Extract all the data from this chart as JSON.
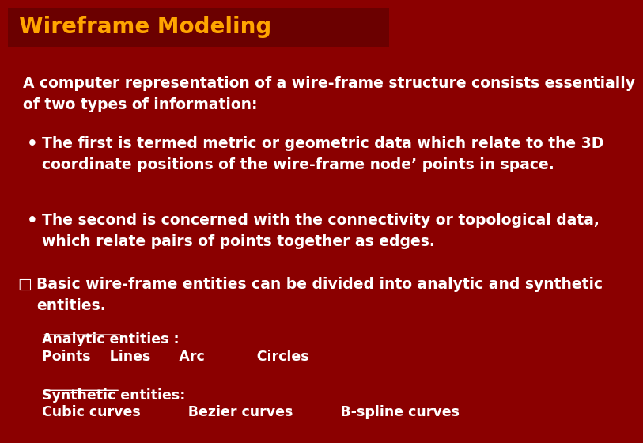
{
  "background_color": "#8B0000",
  "title_bar_color": "#7B0000",
  "title_text": "Wireframe Modeling",
  "title_color": "#FFA500",
  "title_fontsize": 20,
  "body_text_color": "#FFFFFF",
  "body_fontsize": 13.5,
  "bullet_fontsize": 13.5,
  "small_fontsize": 12.5,
  "intro_text": "A computer representation of a wire-frame structure consists essentially\nof two types of information:",
  "bullet1_line1": "The first is termed metric or geometric data which relate to the 3D",
  "bullet1_line2": "coordinate positions of the wire-frame node’ points in space.",
  "bullet2_line1": "The second is concerned with the connectivity or topological data,",
  "bullet2_line2": "which relate pairs of points together as edges.",
  "checkbox_text_line1": "Basic wire-frame entities can be divided into analytic and synthetic",
  "checkbox_text_line2": "entities.",
  "analytic_label": "Analytic entities :",
  "analytic_items": "Points    Lines      Arc           Circles",
  "synthetic_label": "Synthetic entities:",
  "synthetic_items": "Cubic curves          Bezier curves          B-spline curves"
}
